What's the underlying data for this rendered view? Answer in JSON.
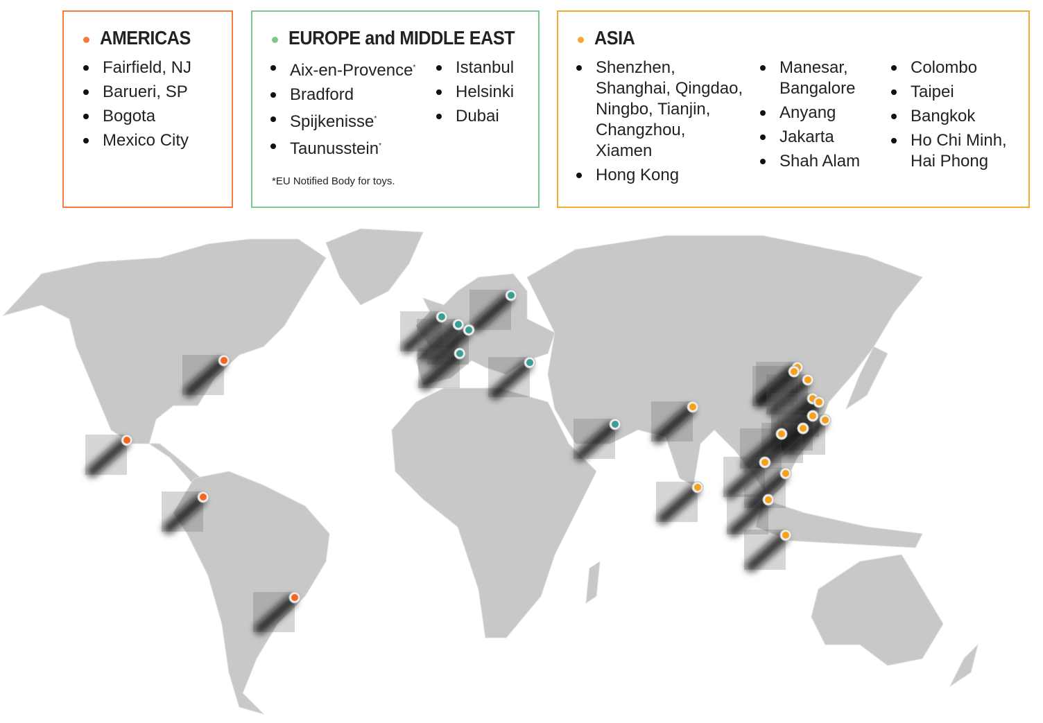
{
  "colors": {
    "americas": "#f47a3c",
    "europe": "#7cc98e",
    "asia": "#f7a832",
    "land": "#c8c8c8",
    "marker_americas": "#f26522",
    "marker_europe": "#3a9e94",
    "marker_asia": "#f7a11a"
  },
  "americas": {
    "title": "AMERICAS",
    "items": [
      "Fairfield, NJ",
      "Barueri, SP",
      "Bogota",
      "Mexico City"
    ]
  },
  "europe": {
    "title": "EUROPE and MIDDLE EAST",
    "col1": [
      "Aix-en-Provence",
      "Bradford",
      "Spijkenisse",
      "Taunusstein"
    ],
    "col1_marks": [
      "*",
      "",
      "*",
      "*"
    ],
    "col2": [
      "Istanbul",
      "Helsinki",
      "Dubai"
    ],
    "footnote": "*EU Notified Body for toys."
  },
  "asia": {
    "title": "ASIA",
    "col1": [
      "Shenzhen, Shanghai, Qingdao, Ningbo, Tianjin, Changzhou, Xiamen",
      "Hong Kong"
    ],
    "col2": [
      "Manesar, Bangalore",
      "Anyang",
      "Jakarta",
      "Shah Alam"
    ],
    "col3": [
      "Colombo",
      "Taipei",
      "Bangkok",
      "Ho Chi Minh, Hai Phong"
    ]
  }
}
